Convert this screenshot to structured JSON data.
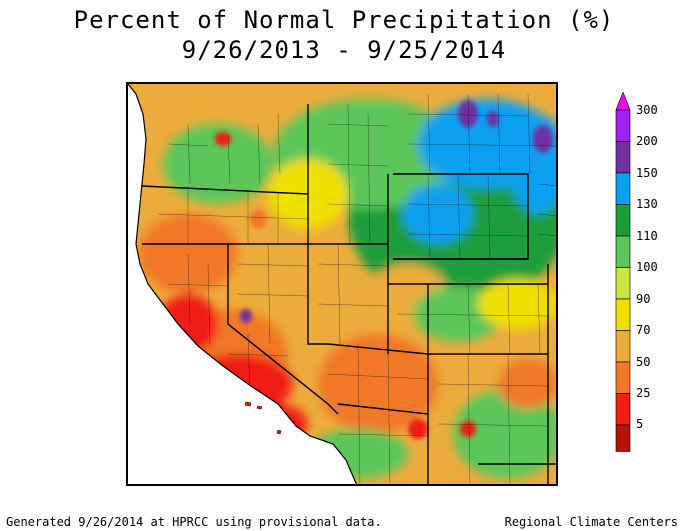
{
  "title": "Percent of Normal Precipitation (%)",
  "date_range": "9/26/2013 - 9/25/2014",
  "legend": {
    "ticks": [
      "300",
      "200",
      "150",
      "130",
      "110",
      "100",
      "90",
      "70",
      "50",
      "25",
      "5"
    ],
    "colors": {
      "above_300": "#ff00ff",
      "200_300": "#a020f0",
      "150_200": "#7030a0",
      "130_150": "#0aa0f0",
      "110_130": "#1a9e3c",
      "100_110": "#5cc65a",
      "90_100": "#c8e640",
      "70_90": "#f0e000",
      "50_70": "#ecac3c",
      "25_50": "#f07828",
      "5_25": "#f01e14",
      "below_5": "#b4140c",
      "lowest": "#781006"
    }
  },
  "footer": {
    "generated": "Generated 9/26/2014 at HPRCC using provisional data.",
    "source": "Regional Climate Centers"
  }
}
